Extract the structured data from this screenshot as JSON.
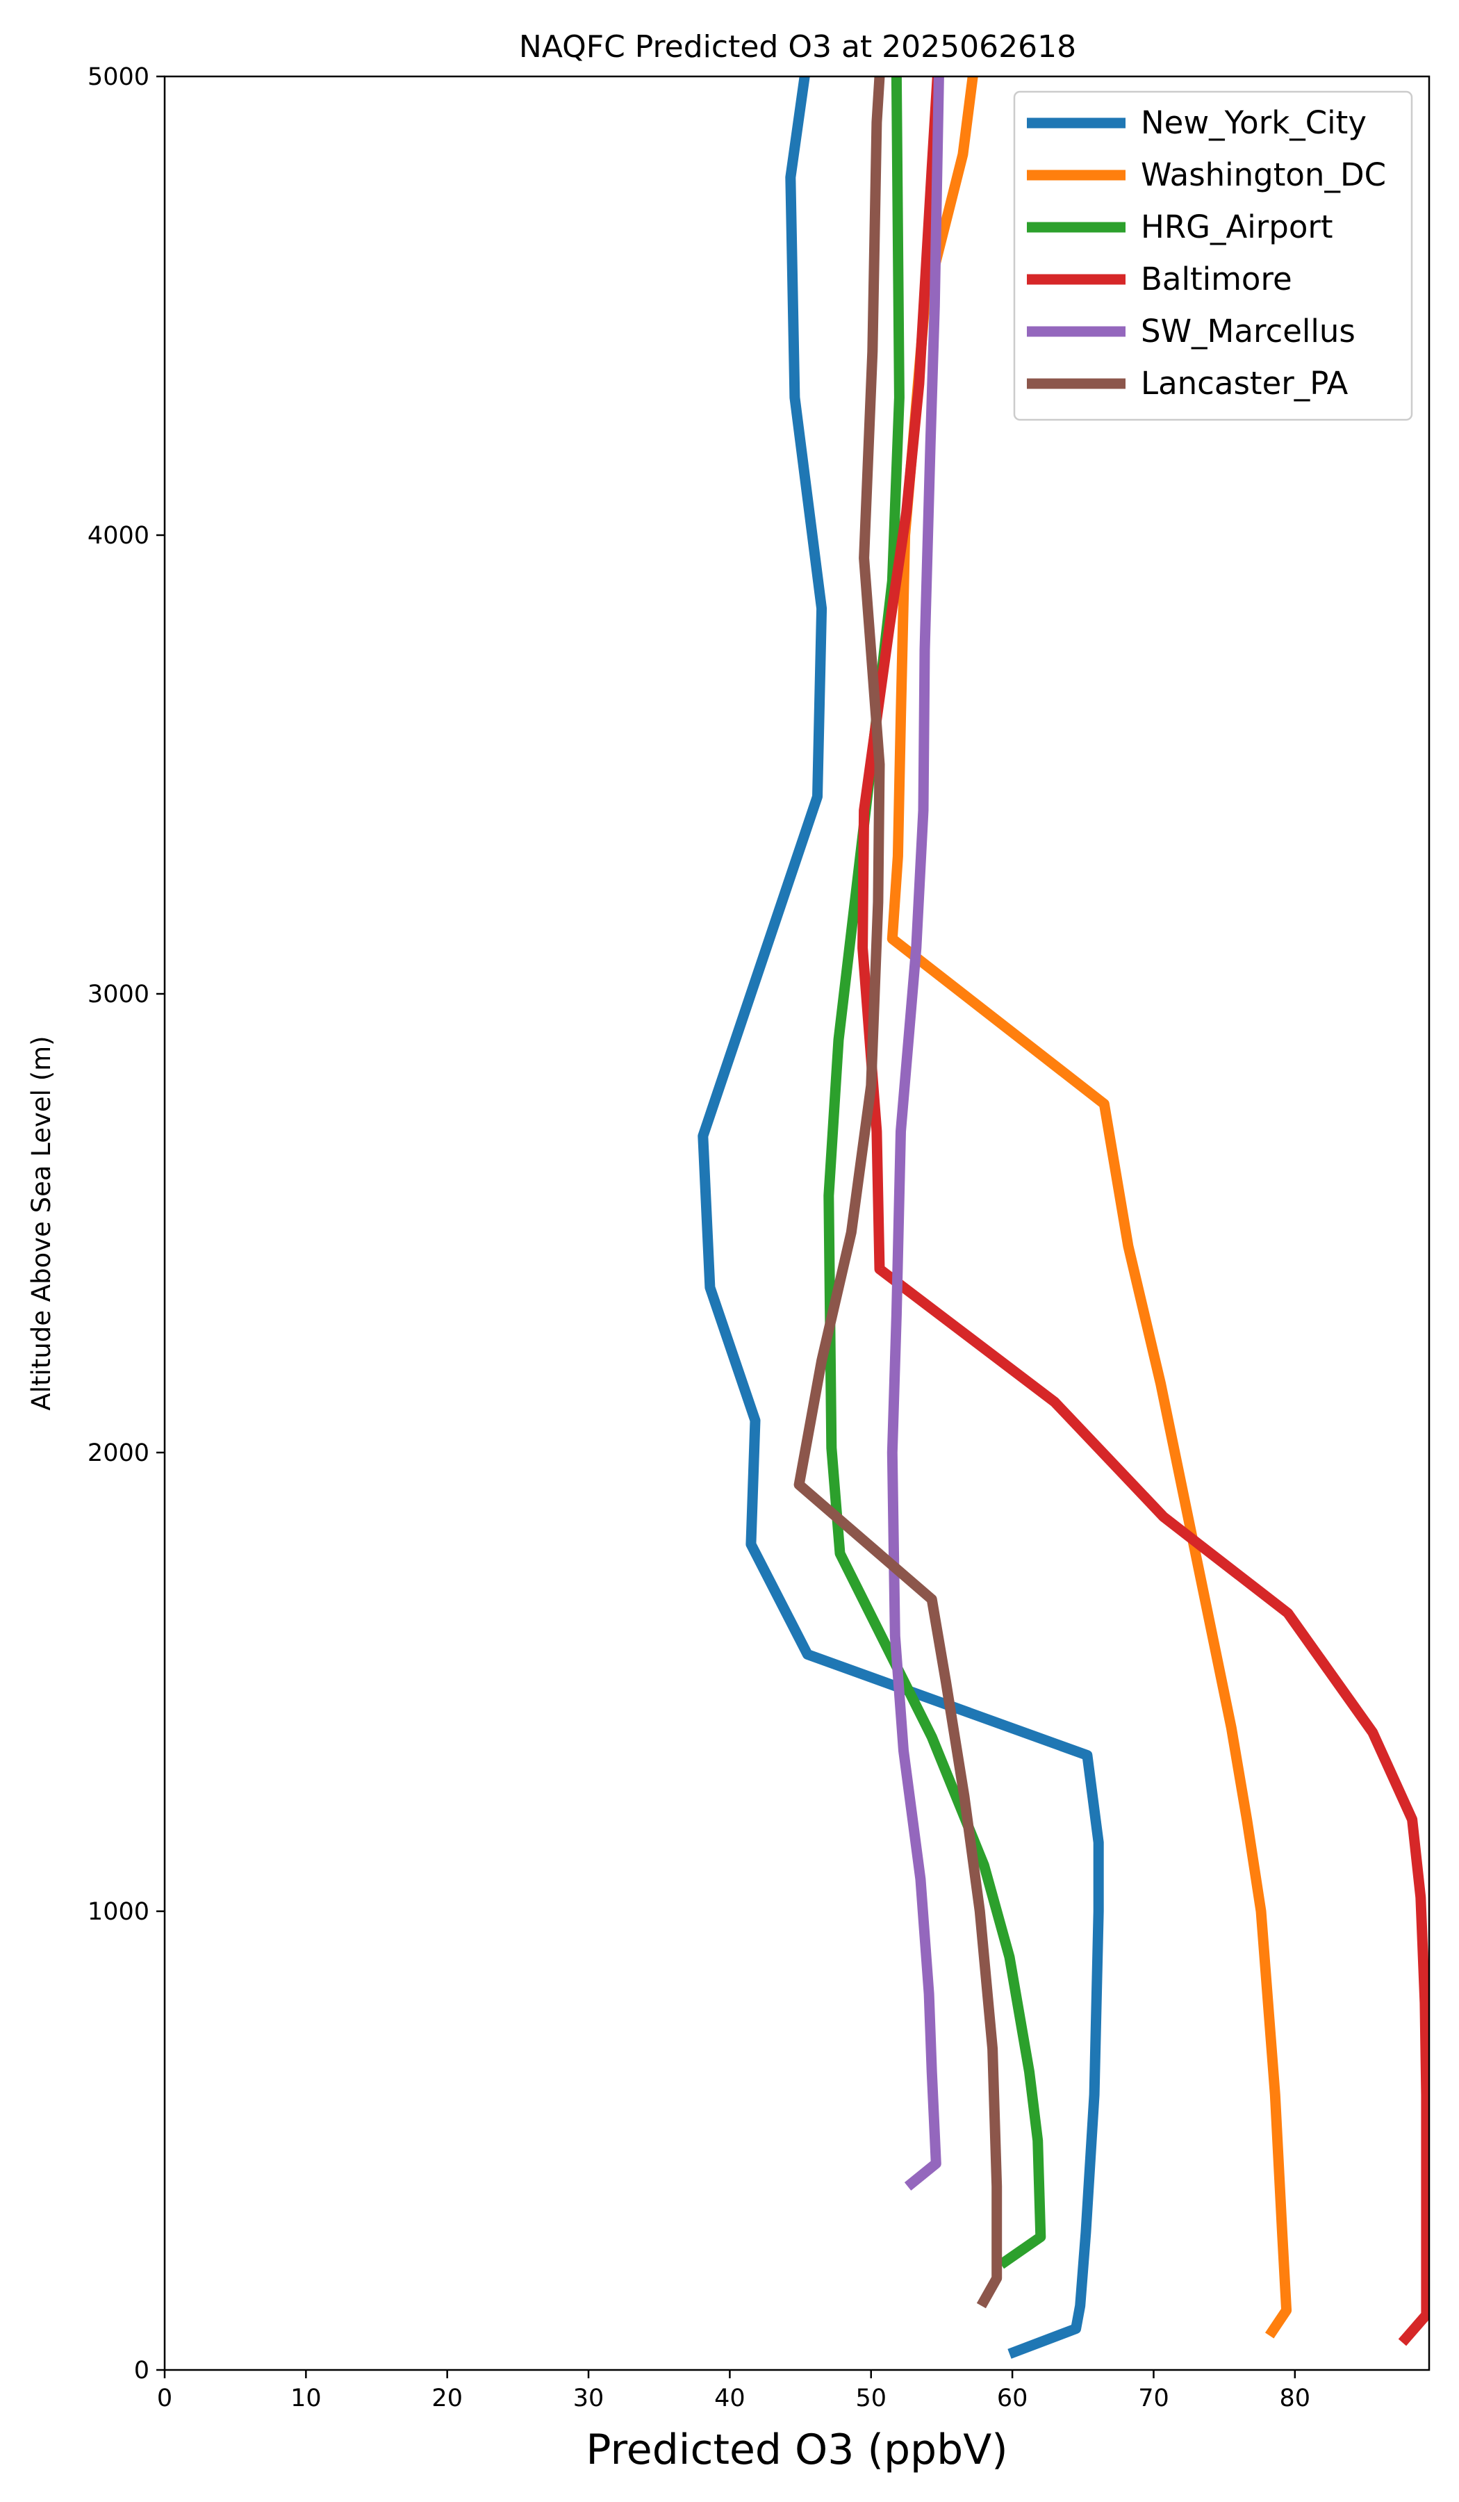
{
  "chart_data": {
    "type": "line",
    "title": "NAQFC Predicted O3 at 2025062618",
    "xlabel": "Predicted O3 (ppbV)",
    "ylabel": "Altitude Above Sea Level (m)",
    "xlim": [
      0,
      89.5
    ],
    "ylim": [
      0,
      5000
    ],
    "xticks": [
      0,
      10,
      20,
      30,
      40,
      50,
      60,
      70,
      80
    ],
    "yticks": [
      0,
      1000,
      2000,
      3000,
      4000,
      5000
    ],
    "grid": false,
    "legend_position": "top-right",
    "series": [
      {
        "name": "New_York_City",
        "color": "#1f77b4",
        "points": [
          [
            59.8,
            35
          ],
          [
            64.5,
            90
          ],
          [
            64.8,
            140
          ],
          [
            65.2,
            300
          ],
          [
            65.8,
            600
          ],
          [
            66.1,
            1000
          ],
          [
            66.1,
            1150
          ],
          [
            65.3,
            1340
          ],
          [
            45.5,
            1560
          ],
          [
            41.5,
            1800
          ],
          [
            41.8,
            2070
          ],
          [
            38.6,
            2360
          ],
          [
            38.1,
            2690
          ],
          [
            46.2,
            3430
          ],
          [
            46.5,
            3840
          ],
          [
            44.6,
            4300
          ],
          [
            44.3,
            4780
          ],
          [
            45.3,
            5000
          ]
        ]
      },
      {
        "name": "Washington_DC",
        "color": "#ff7f0e",
        "points": [
          [
            78.2,
            75
          ],
          [
            79.4,
            130
          ],
          [
            79.1,
            300
          ],
          [
            78.6,
            600
          ],
          [
            77.6,
            1000
          ],
          [
            76.6,
            1200
          ],
          [
            75.5,
            1400
          ],
          [
            70.5,
            2150
          ],
          [
            68.2,
            2450
          ],
          [
            66.5,
            2760
          ],
          [
            51.5,
            3120
          ],
          [
            51.9,
            3300
          ],
          [
            52.1,
            3600
          ],
          [
            52.4,
            4000
          ],
          [
            53.8,
            4500
          ],
          [
            56.5,
            4830
          ],
          [
            57.2,
            5000
          ]
        ]
      },
      {
        "name": "HRG_Airport",
        "color": "#2ca02c",
        "points": [
          [
            59.2,
            230
          ],
          [
            62.0,
            290
          ],
          [
            61.8,
            500
          ],
          [
            61.2,
            650
          ],
          [
            59.8,
            900
          ],
          [
            58.0,
            1100
          ],
          [
            54.3,
            1380
          ],
          [
            47.8,
            1780
          ],
          [
            47.2,
            2010
          ],
          [
            47.0,
            2560
          ],
          [
            47.7,
            2900
          ],
          [
            50.0,
            3500
          ],
          [
            51.5,
            3900
          ],
          [
            52.0,
            4300
          ],
          [
            51.8,
            5000
          ]
        ]
      },
      {
        "name": "Baltimore",
        "color": "#d62728",
        "points": [
          [
            87.6,
            60
          ],
          [
            89.3,
            120
          ],
          [
            89.3,
            300
          ],
          [
            89.3,
            600
          ],
          [
            89.2,
            800
          ],
          [
            88.9,
            1030
          ],
          [
            88.3,
            1200
          ],
          [
            85.5,
            1390
          ],
          [
            79.5,
            1650
          ],
          [
            70.7,
            1860
          ],
          [
            63.0,
            2110
          ],
          [
            50.6,
            2400
          ],
          [
            50.4,
            2700
          ],
          [
            49.4,
            3100
          ],
          [
            49.5,
            3400
          ],
          [
            51.3,
            3800
          ],
          [
            52.5,
            4050
          ],
          [
            53.4,
            4330
          ],
          [
            54.3,
            4800
          ],
          [
            54.7,
            5000
          ]
        ]
      },
      {
        "name": "SW_Marcellus",
        "color": "#9467bd",
        "points": [
          [
            52.6,
            400
          ],
          [
            54.6,
            450
          ],
          [
            54.3,
            650
          ],
          [
            54.1,
            820
          ],
          [
            53.5,
            1070
          ],
          [
            52.3,
            1350
          ],
          [
            51.7,
            1600
          ],
          [
            51.6,
            1800
          ],
          [
            51.5,
            2000
          ],
          [
            51.8,
            2300
          ],
          [
            52.1,
            2700
          ],
          [
            53.2,
            3100
          ],
          [
            53.7,
            3400
          ],
          [
            53.8,
            3750
          ],
          [
            54.2,
            4200
          ],
          [
            54.5,
            4500
          ],
          [
            54.8,
            5000
          ]
        ]
      },
      {
        "name": "Lancaster_PA",
        "color": "#8c564b",
        "points": [
          [
            57.8,
            140
          ],
          [
            58.9,
            200
          ],
          [
            58.9,
            400
          ],
          [
            58.6,
            700
          ],
          [
            57.7,
            1000
          ],
          [
            56.6,
            1250
          ],
          [
            55.3,
            1500
          ],
          [
            54.3,
            1680
          ],
          [
            44.9,
            1930
          ],
          [
            46.5,
            2200
          ],
          [
            48.6,
            2480
          ],
          [
            50.0,
            2800
          ],
          [
            50.5,
            3200
          ],
          [
            50.6,
            3500
          ],
          [
            49.5,
            3950
          ],
          [
            50.1,
            4400
          ],
          [
            50.4,
            4900
          ],
          [
            50.6,
            5000
          ]
        ]
      }
    ]
  }
}
